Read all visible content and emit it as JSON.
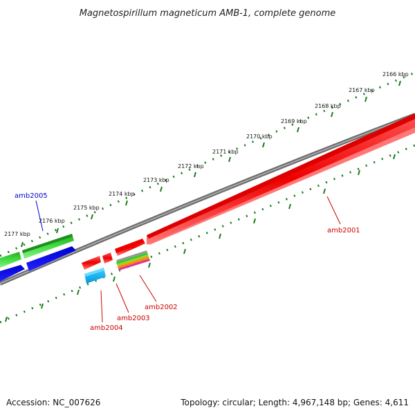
{
  "title": "Magnetospirillum magneticum AMB-1, complete genome",
  "footer": {
    "accession": "Accession: NC_007626",
    "summary": "Topology: circular; Length: 4,967,148 bp; Genes: 4,611"
  },
  "scale_labels": [
    "2166 kbp",
    "2167 kbp",
    "2168 kbp",
    "2169 kbp",
    "2170 kbp",
    "2171 kbp",
    "2172 kbp",
    "2173 kbp",
    "2174 kbp",
    "2175 kbp",
    "2176 kbp",
    "2177 kbp"
  ],
  "genes": [
    {
      "label": "amb2001",
      "color": "#cc0000"
    },
    {
      "label": "amb2002",
      "color": "#cc0000"
    },
    {
      "label": "amb2003",
      "color": "#cc0000"
    },
    {
      "label": "amb2004",
      "color": "#cc0000"
    },
    {
      "label": "amb2005",
      "color": "#0000cc"
    }
  ],
  "colors": {
    "backbone": "#808080",
    "ticks": "#1a7a1a",
    "red_gene": "#ff0000",
    "green_gene": "#33cc33",
    "blue_gene": "#0000ee",
    "cyan_gene": "#22bbee"
  }
}
